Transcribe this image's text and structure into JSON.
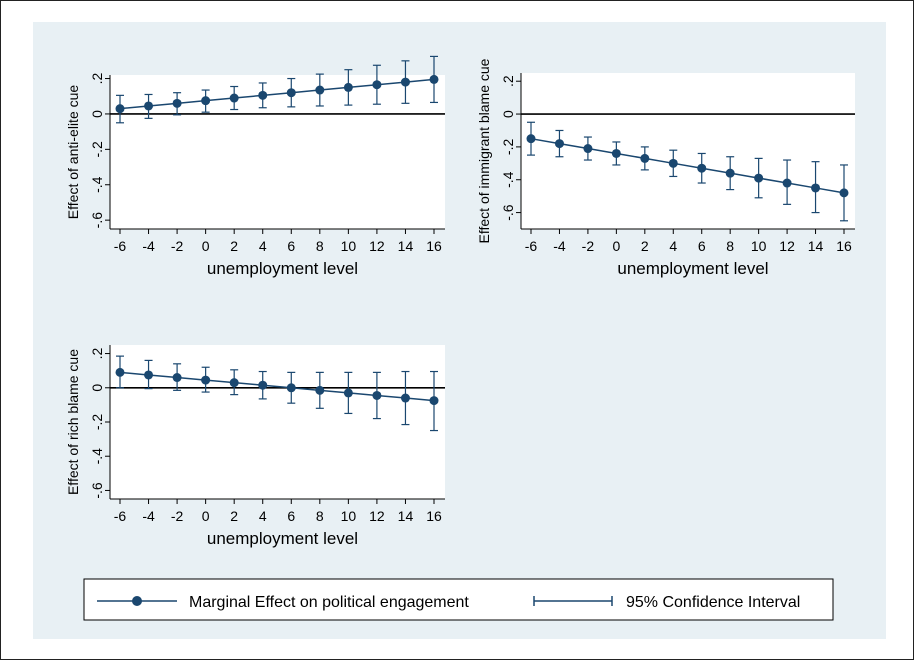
{
  "colors": {
    "series": "#1a476f",
    "panel_bg": "#e8f0f4",
    "plot_bg": "#ffffff"
  },
  "chart_data": [
    {
      "type": "line",
      "xlabel": "unemployment level",
      "ylabel": "Effect of anti-elite cue",
      "x": [
        -6,
        -4,
        -2,
        0,
        2,
        4,
        6,
        8,
        10,
        12,
        14,
        16
      ],
      "xticks": [
        "-6",
        "-4",
        "-2",
        "0",
        "2",
        "4",
        "6",
        "8",
        "10",
        "12",
        "14",
        "16"
      ],
      "yticks": [
        "-.6",
        "-.4",
        "-.2",
        "0",
        ".2"
      ],
      "ylim": [
        -0.65,
        0.22
      ],
      "reference_line": 0,
      "series": [
        {
          "name": "Marginal Effect on political engagement",
          "values": [
            0.03,
            0.045,
            0.06,
            0.075,
            0.09,
            0.105,
            0.12,
            0.135,
            0.15,
            0.165,
            0.18,
            0.195
          ]
        },
        {
          "name": "95% Confidence Interval",
          "lower": [
            -0.05,
            -0.025,
            -0.005,
            0.01,
            0.025,
            0.035,
            0.04,
            0.045,
            0.05,
            0.055,
            0.06,
            0.065
          ],
          "upper": [
            0.105,
            0.11,
            0.12,
            0.135,
            0.155,
            0.175,
            0.2,
            0.225,
            0.25,
            0.275,
            0.3,
            0.325
          ]
        }
      ]
    },
    {
      "type": "line",
      "xlabel": "unemployment level",
      "ylabel": "Effect of immigrant blame cue",
      "x": [
        -6,
        -4,
        -2,
        0,
        2,
        4,
        6,
        8,
        10,
        12,
        14,
        16
      ],
      "xticks": [
        "-6",
        "-4",
        "-2",
        "0",
        "2",
        "4",
        "6",
        "8",
        "10",
        "12",
        "14",
        "16"
      ],
      "yticks": [
        "-.6",
        "-.4",
        "-.2",
        "0",
        ".2"
      ],
      "ylim": [
        -0.7,
        0.25
      ],
      "reference_line": 0,
      "series": [
        {
          "name": "Marginal Effect on political engagement",
          "values": [
            -0.15,
            -0.18,
            -0.21,
            -0.24,
            -0.27,
            -0.3,
            -0.33,
            -0.36,
            -0.39,
            -0.42,
            -0.45,
            -0.48
          ]
        },
        {
          "name": "95% Confidence Interval",
          "lower": [
            -0.25,
            -0.26,
            -0.28,
            -0.31,
            -0.34,
            -0.38,
            -0.42,
            -0.46,
            -0.51,
            -0.55,
            -0.6,
            -0.65
          ],
          "upper": [
            -0.05,
            -0.1,
            -0.14,
            -0.17,
            -0.2,
            -0.22,
            -0.24,
            -0.26,
            -0.27,
            -0.28,
            -0.29,
            -0.31
          ]
        }
      ]
    },
    {
      "type": "line",
      "xlabel": "unemployment level",
      "ylabel": "Effect of rich blame cue",
      "x": [
        -6,
        -4,
        -2,
        0,
        2,
        4,
        6,
        8,
        10,
        12,
        14,
        16
      ],
      "xticks": [
        "-6",
        "-4",
        "-2",
        "0",
        "2",
        "4",
        "6",
        "8",
        "10",
        "12",
        "14",
        "16"
      ],
      "yticks": [
        "-.6",
        "-.4",
        "-.2",
        "0",
        ".2"
      ],
      "ylim": [
        -0.65,
        0.25
      ],
      "reference_line": 0,
      "series": [
        {
          "name": "Marginal Effect on political engagement",
          "values": [
            0.09,
            0.075,
            0.06,
            0.045,
            0.03,
            0.015,
            0.0,
            -0.015,
            -0.03,
            -0.045,
            -0.06,
            -0.075
          ]
        },
        {
          "name": "95% Confidence Interval",
          "lower": [
            0.0,
            -0.005,
            -0.015,
            -0.025,
            -0.04,
            -0.065,
            -0.09,
            -0.12,
            -0.15,
            -0.18,
            -0.215,
            -0.25
          ],
          "upper": [
            0.185,
            0.16,
            0.14,
            0.12,
            0.105,
            0.095,
            0.09,
            0.09,
            0.09,
            0.09,
            0.095,
            0.095
          ]
        }
      ]
    }
  ],
  "legend": {
    "placement": "bottom",
    "items": [
      {
        "label": "Marginal Effect on political engagement",
        "marker": "line-with-dot"
      },
      {
        "label": "95% Confidence Interval",
        "marker": "capped-line"
      }
    ]
  }
}
